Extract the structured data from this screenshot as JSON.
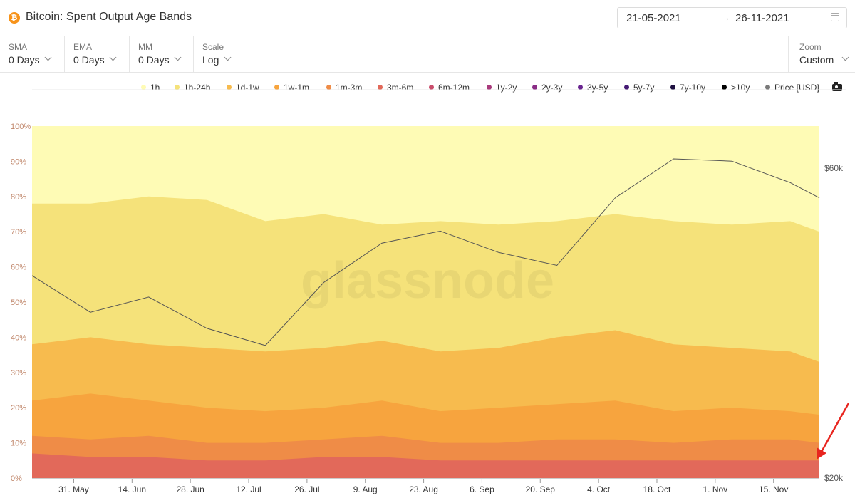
{
  "header": {
    "title": "Bitcoin: Spent Output Age Bands",
    "start_date": "21-05-2021",
    "end_date": "26-11-2021",
    "arrow": "→"
  },
  "controls": [
    {
      "label": "SMA",
      "value": "0 Days"
    },
    {
      "label": "EMA",
      "value": "0 Days"
    },
    {
      "label": "MM",
      "value": "0 Days"
    },
    {
      "label": "Scale",
      "value": "Log"
    }
  ],
  "zoom": {
    "label": "Zoom",
    "value": "Custom"
  },
  "watermark": "glassnode",
  "chart_data": {
    "type": "area",
    "stacked": true,
    "y_unit": "percent",
    "ylim": [
      0,
      100
    ],
    "y_ticks": [
      "0%",
      "10%",
      "20%",
      "30%",
      "40%",
      "50%",
      "60%",
      "70%",
      "80%",
      "90%",
      "100%"
    ],
    "y2_ticks": [
      {
        "label": "$20k",
        "value": 20000
      },
      {
        "label": "$60k",
        "value": 60000
      }
    ],
    "y2_scale": "log",
    "x_ticks": [
      "31. May",
      "14. Jun",
      "28. Jun",
      "12. Jul",
      "26. Jul",
      "9. Aug",
      "23. Aug",
      "6. Sep",
      "20. Sep",
      "4. Oct",
      "18. Oct",
      "1. Nov",
      "15. Nov"
    ],
    "x_tick_dates": [
      "2021-05-31",
      "2021-06-14",
      "2021-06-28",
      "2021-07-12",
      "2021-07-26",
      "2021-08-09",
      "2021-08-23",
      "2021-09-06",
      "2021-09-20",
      "2021-10-04",
      "2021-10-18",
      "2021-11-01",
      "2021-11-15"
    ],
    "x_range": [
      "2021-05-21",
      "2021-11-26"
    ],
    "x_dates": [
      "2021-05-21",
      "2021-06-04",
      "2021-06-18",
      "2021-07-02",
      "2021-07-16",
      "2021-07-30",
      "2021-08-13",
      "2021-08-27",
      "2021-09-10",
      "2021-09-24",
      "2021-10-08",
      "2021-10-22",
      "2021-11-05",
      "2021-11-19",
      "2021-11-26"
    ],
    "legend": [
      {
        "name": "1h",
        "color": "#fefbb5"
      },
      {
        "name": "1h-24h",
        "color": "#f5e27a"
      },
      {
        "name": "1d-1w",
        "color": "#f7bb4e"
      },
      {
        "name": "1w-1m",
        "color": "#f7a43e"
      },
      {
        "name": "1m-3m",
        "color": "#ef8c47"
      },
      {
        "name": "3m-6m",
        "color": "#e2695a"
      },
      {
        "name": "6m-12m",
        "color": "#c94c6b"
      },
      {
        "name": "1y-2y",
        "color": "#a93a7c"
      },
      {
        "name": "2y-3y",
        "color": "#8a2d86"
      },
      {
        "name": "3y-5y",
        "color": "#6a2590"
      },
      {
        "name": "5y-7y",
        "color": "#451a74"
      },
      {
        "name": "7y-10y",
        "color": "#1e1040"
      },
      {
        "name": ">10y",
        "color": "#000000"
      },
      {
        "name": "Price [USD]",
        "color": "#7a7a7a"
      }
    ],
    "stack_totals": {
      "3m-6m": [
        7,
        6,
        6,
        5,
        5,
        6,
        6,
        5,
        5,
        5,
        5,
        5,
        5,
        5,
        5
      ],
      "1m-3m": [
        12,
        11,
        12,
        10,
        10,
        11,
        12,
        10,
        10,
        11,
        11,
        10,
        11,
        11,
        10
      ],
      "1w-1m": [
        22,
        24,
        22,
        20,
        19,
        20,
        22,
        19,
        20,
        21,
        22,
        19,
        20,
        19,
        18
      ],
      "1d-1w": [
        38,
        40,
        38,
        37,
        36,
        37,
        39,
        36,
        37,
        40,
        42,
        38,
        37,
        36,
        33
      ],
      "1h-24h": [
        78,
        78,
        80,
        79,
        73,
        75,
        72,
        73,
        72,
        73,
        75,
        73,
        72,
        73,
        70
      ],
      "1h": [
        100,
        100,
        100,
        100,
        100,
        100,
        100,
        100,
        100,
        100,
        100,
        100,
        100,
        100,
        100
      ]
    },
    "price_usd": [
      41000,
      36000,
      38000,
      34000,
      32000,
      40000,
      46000,
      48000,
      44500,
      42500,
      54000,
      62000,
      61500,
      57000,
      54000
    ]
  }
}
